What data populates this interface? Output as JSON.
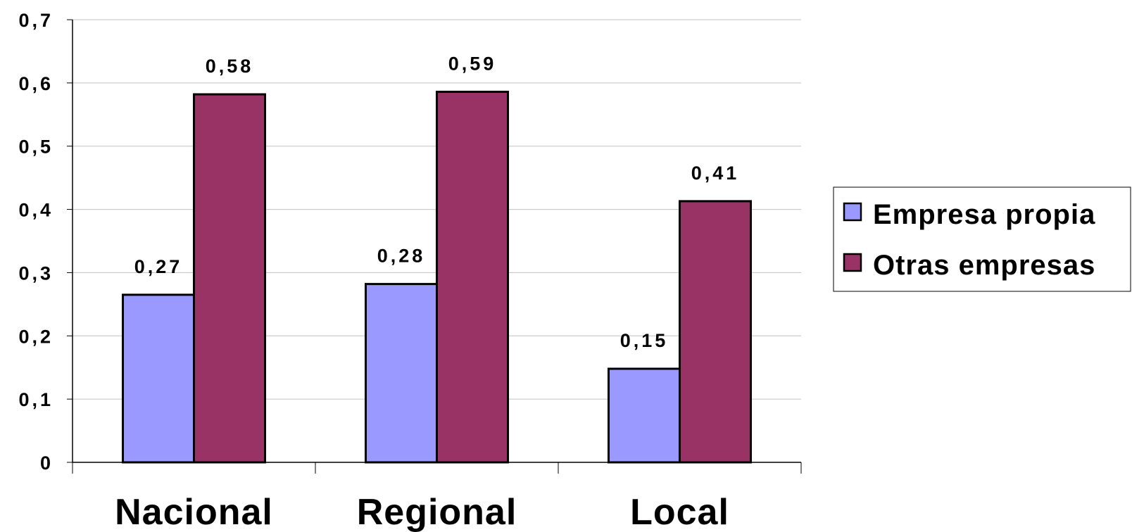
{
  "chart_data": {
    "type": "bar",
    "title": "",
    "xlabel": "",
    "ylabel": "",
    "categories": [
      "Nacional",
      "Regional",
      "Local"
    ],
    "series": [
      {
        "name": "Empresa propia",
        "color": "#9999ff",
        "values": [
          0.265,
          0.282,
          0.148
        ],
        "labels": [
          "0,27",
          "0,28",
          "0,15"
        ]
      },
      {
        "name": "Otras empresas",
        "color": "#993366",
        "values": [
          0.582,
          0.586,
          0.413
        ],
        "labels": [
          "0,58",
          "0,59",
          "0,41"
        ]
      }
    ],
    "ylim": [
      0,
      0.7
    ],
    "yticks": [
      0,
      0.1,
      0.2,
      0.3,
      0.4,
      0.5,
      0.6,
      0.7
    ],
    "ytick_labels": [
      "0",
      "0,1",
      "0,2",
      "0,3",
      "0,4",
      "0,5",
      "0,6",
      "0,7"
    ],
    "grid": true,
    "legend_position": "right"
  }
}
